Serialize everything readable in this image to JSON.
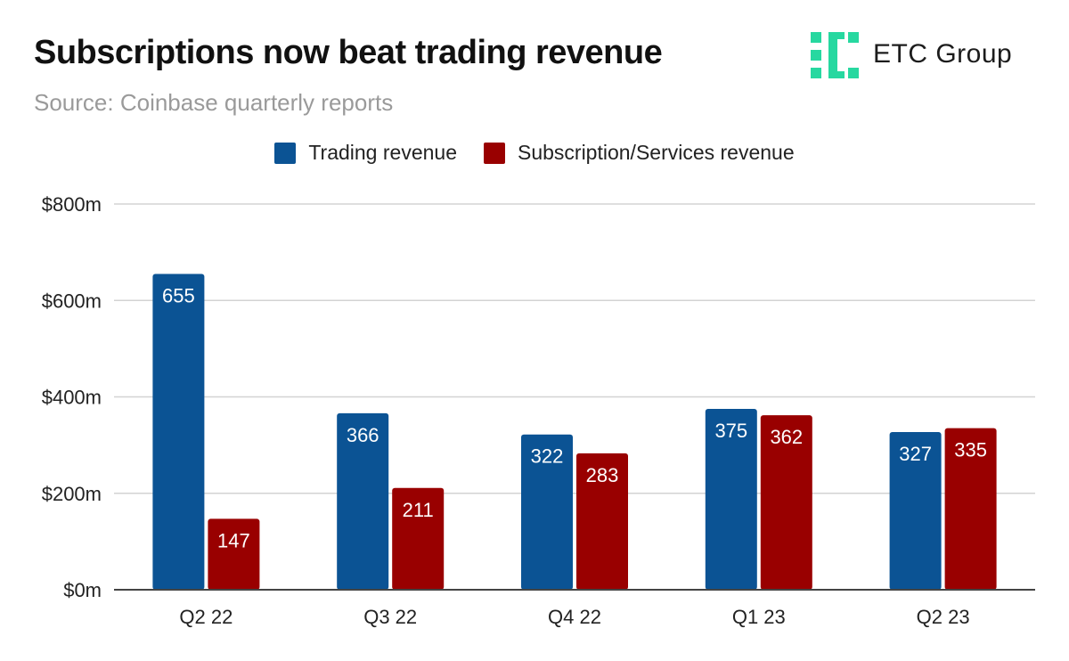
{
  "header": {
    "title": "Subscriptions now beat trading revenue",
    "subtitle": "Source: Coinbase quarterly reports",
    "logo_text": "ETC Group"
  },
  "colors": {
    "trading": "#0b5394",
    "subscription": "#990000",
    "gridline": "#d3d3d3",
    "axis": "#444444",
    "logo": "#27d8a0"
  },
  "chart_data": {
    "type": "bar",
    "title": "Subscriptions now beat trading revenue",
    "subtitle": "Source: Coinbase quarterly reports",
    "xlabel": "",
    "ylabel": "",
    "ylim": [
      0,
      800
    ],
    "yticks": [
      0,
      200,
      400,
      600,
      800
    ],
    "ytick_labels": [
      "$0m",
      "$200m",
      "$400m",
      "$600m",
      "$800m"
    ],
    "categories": [
      "Q2 22",
      "Q3 22",
      "Q4 22",
      "Q1 23",
      "Q2 23"
    ],
    "legend_position": "top-center",
    "grid": true,
    "series": [
      {
        "name": "Trading revenue",
        "values": [
          655,
          366,
          322,
          375,
          327
        ]
      },
      {
        "name": "Subscription/Services revenue",
        "values": [
          147,
          211,
          283,
          362,
          335
        ]
      }
    ]
  }
}
